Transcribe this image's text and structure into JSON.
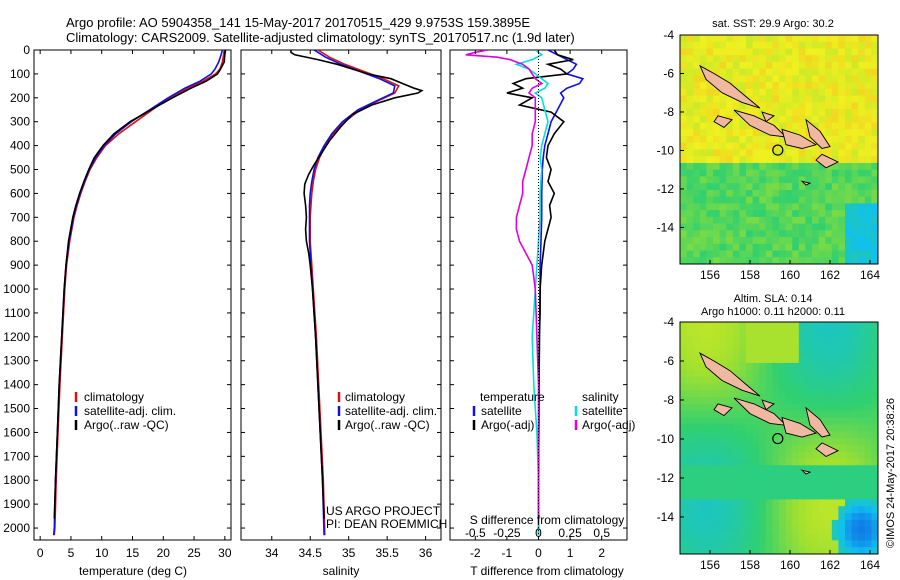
{
  "header": {
    "line1": "Argo profile: AO 5904358_141 15-May-2017 20170515_429 9.9753S 159.3895E",
    "line2": "Climatology: CARS2009. Satellite-adjusted climatology: synTS_20170517.nc (1.9d later)"
  },
  "project": {
    "line1": "US ARGO PROJECT",
    "line2": "PI: DEAN ROEMMICH"
  },
  "imos_stamp": "©IMOS 24-May-2017 20:38:26",
  "colors": {
    "climatology": "#e01010",
    "satellite": "#1010e0",
    "argo": "#000000",
    "satellite_salinity": "#00e0e0",
    "argo_salinity": "#e000e0",
    "land": "#f0b8a0"
  },
  "chart_data": [
    {
      "type": "line",
      "id": "temperature",
      "xlabel": "temperature (deg C)",
      "xlim": [
        -1,
        31
      ],
      "ylim": [
        2050,
        0
      ],
      "xticks": [
        "0",
        "5",
        "10",
        "15",
        "20",
        "25",
        "30"
      ],
      "yticks": [
        "0",
        "100",
        "200",
        "300",
        "400",
        "500",
        "600",
        "700",
        "800",
        "900",
        "1000",
        "1100",
        "1200",
        "1300",
        "1400",
        "1500",
        "1600",
        "1700",
        "1800",
        "1900",
        "2000"
      ],
      "legend": [
        "climatology",
        "satellite-adj. clim.",
        "Argo(..raw -QC)"
      ],
      "legend_position": "bottom-left",
      "series": [
        {
          "name": "climatology",
          "color": "#e01010",
          "depth": [
            0,
            20,
            50,
            80,
            100,
            130,
            160,
            200,
            250,
            300,
            350,
            400,
            450,
            500,
            550,
            600,
            650,
            700,
            800,
            900,
            1000,
            1200,
            1400,
            1600,
            1800,
            2000,
            2030
          ],
          "values": [
            29.9,
            29.8,
            29.6,
            29.2,
            28.5,
            26.5,
            24,
            21,
            18.2,
            15.5,
            12.8,
            10.6,
            9.2,
            8.1,
            7.3,
            6.6,
            6,
            5.5,
            4.8,
            4.3,
            4,
            3.6,
            3.2,
            2.9,
            2.6,
            2.4,
            2.3
          ]
        },
        {
          "name": "satellite-adj. clim.",
          "color": "#1010e0",
          "depth": [
            0,
            20,
            50,
            80,
            100,
            130,
            160,
            200,
            250,
            300,
            350,
            400,
            450,
            500,
            550,
            600,
            650,
            700,
            800,
            900,
            1000,
            1200,
            1400,
            1600,
            1800,
            2000,
            2030
          ],
          "values": [
            29.6,
            29.4,
            29,
            28.4,
            27.8,
            26,
            23.5,
            20.8,
            17.8,
            14.8,
            12.3,
            10.4,
            9,
            8,
            7.2,
            6.5,
            5.9,
            5.4,
            4.7,
            4.2,
            3.9,
            3.5,
            3.1,
            2.8,
            2.5,
            2.3,
            2.2
          ]
        },
        {
          "name": "Argo(..raw -QC)",
          "color": "#000000",
          "depth": [
            0,
            20,
            50,
            80,
            100,
            130,
            160,
            200,
            250,
            300,
            350,
            400,
            450,
            500,
            550,
            600,
            650,
            700,
            800,
            900,
            1000,
            1200,
            1400,
            1600,
            1800,
            1960
          ],
          "values": [
            30.1,
            30,
            29.9,
            29.3,
            28.8,
            27,
            24.5,
            21.5,
            18,
            14.6,
            12,
            10.2,
            8.8,
            7.9,
            7.1,
            6.4,
            5.8,
            5.3,
            4.6,
            4.2,
            3.9,
            3.5,
            3.1,
            2.8,
            2.5,
            2.3
          ]
        }
      ]
    },
    {
      "type": "line",
      "id": "salinity",
      "xlabel": "salinity",
      "xlim": [
        33.6,
        36.2
      ],
      "ylim": [
        2050,
        0
      ],
      "xticks": [
        "34",
        "34.5",
        "35",
        "35.5",
        "36"
      ],
      "legend": [
        "climatology",
        "satellite-adj. clim.",
        "Argo(..raw -QC)"
      ],
      "legend_position": "bottom-right",
      "series": [
        {
          "name": "climatology",
          "color": "#e01010",
          "depth": [
            0,
            30,
            60,
            90,
            120,
            150,
            180,
            210,
            250,
            300,
            350,
            400,
            450,
            500,
            550,
            600,
            650,
            700,
            800,
            900,
            1000,
            1200,
            1400,
            1600,
            1800,
            2030
          ],
          "values": [
            34.6,
            34.75,
            34.95,
            35.2,
            35.45,
            35.65,
            35.6,
            35.4,
            35.15,
            34.95,
            34.8,
            34.7,
            34.62,
            34.57,
            34.54,
            34.52,
            34.51,
            34.5,
            34.5,
            34.52,
            34.54,
            34.58,
            34.61,
            34.64,
            34.67,
            34.69
          ]
        },
        {
          "name": "satellite-adj. clim.",
          "color": "#1010e0",
          "depth": [
            0,
            30,
            60,
            90,
            120,
            150,
            180,
            210,
            250,
            300,
            350,
            400,
            450,
            500,
            550,
            600,
            650,
            700,
            800,
            900,
            1000,
            1200,
            1400,
            1600,
            1800,
            2030
          ],
          "values": [
            34.55,
            34.7,
            34.9,
            35.15,
            35.4,
            35.6,
            35.58,
            35.38,
            35.12,
            34.92,
            34.78,
            34.68,
            34.6,
            34.55,
            34.52,
            34.5,
            34.49,
            34.49,
            34.49,
            34.51,
            34.53,
            34.57,
            34.6,
            34.63,
            34.66,
            34.68
          ]
        },
        {
          "name": "Argo(..raw -QC)",
          "color": "#000000",
          "depth": [
            0,
            10,
            20,
            40,
            60,
            80,
            100,
            120,
            140,
            160,
            170,
            180,
            200,
            230,
            270,
            320,
            380,
            430,
            480,
            520,
            560,
            600,
            650,
            700,
            750,
            800,
            850,
            900,
            1000,
            1200,
            1400,
            1600,
            1800,
            1960
          ],
          "values": [
            34.25,
            34.25,
            34.3,
            34.6,
            34.85,
            35.05,
            35.25,
            35.55,
            35.7,
            35.85,
            35.95,
            35.9,
            35.6,
            35.3,
            35.05,
            34.9,
            34.75,
            34.65,
            34.55,
            34.48,
            34.43,
            34.42,
            34.44,
            34.45,
            34.44,
            34.45,
            34.48,
            34.5,
            34.53,
            34.57,
            34.6,
            34.63,
            34.66,
            34.68
          ]
        }
      ]
    },
    {
      "type": "line",
      "id": "difference",
      "xlabel": "T difference from climatology",
      "xlabel_top": "S difference from climatology",
      "xlim": [
        -2.8,
        2.8
      ],
      "ylim": [
        2050,
        0
      ],
      "xticks": [
        "-2",
        "-1",
        "0",
        "1",
        "2"
      ],
      "xticks_salinity": [
        "-0.5",
        "-0.25",
        "0",
        "0.25",
        "0.5"
      ],
      "legend_headers": [
        "temperature",
        "salinity"
      ],
      "legend": [
        "satellite",
        "Argo(-adj)",
        "satellite",
        "Argo(-adj)"
      ],
      "series": [
        {
          "name": "satellite",
          "group": "temperature",
          "color": "#1010e0",
          "depth": [
            0,
            20,
            40,
            60,
            80,
            100,
            120,
            140,
            160,
            180,
            200,
            250,
            300,
            350,
            400,
            450,
            500,
            600,
            700,
            800,
            900,
            1000,
            1200,
            1400,
            1600,
            1800,
            2030
          ],
          "values": [
            0.3,
            0.6,
            0.9,
            1.2,
            1.1,
            0.9,
            1.4,
            1.3,
            0.9,
            0.7,
            0.8,
            0.6,
            0.4,
            0.3,
            0.2,
            0.15,
            0.12,
            0.1,
            0.1,
            0.08,
            0.05,
            0.05,
            0.03,
            0.02,
            0.01,
            0,
            0
          ]
        },
        {
          "name": "Argo(-adj)",
          "group": "temperature",
          "color": "#000000",
          "depth": [
            0,
            20,
            40,
            60,
            80,
            100,
            120,
            140,
            160,
            180,
            200,
            230,
            260,
            300,
            350,
            400,
            450,
            500,
            550,
            600,
            650,
            700,
            800,
            900,
            1000,
            1100,
            1200,
            1400,
            1600,
            1800,
            1960
          ],
          "values": [
            0.5,
            0.6,
            1.1,
            0.3,
            0.7,
            0.9,
            -0.4,
            -0.8,
            -0.5,
            -1.0,
            -0.2,
            -0.6,
            0.4,
            0.8,
            0.5,
            0.3,
            0.25,
            0.4,
            0.3,
            0.5,
            0.35,
            0.4,
            0.2,
            0.1,
            0.05,
            0.05,
            0.03,
            0.02,
            0.01,
            0.0,
            0.0
          ]
        },
        {
          "name": "satellite",
          "group": "salinity",
          "color": "#00e0e0",
          "depth": [
            0,
            20,
            40,
            60,
            80,
            100,
            120,
            140,
            160,
            180,
            200,
            250,
            300,
            350,
            400,
            450,
            500,
            600,
            700,
            800,
            900,
            1000,
            1100,
            1200,
            1400,
            1500,
            1600,
            1800,
            2030
          ],
          "values": [
            -0.1,
            0.1,
            -0.2,
            -0.7,
            -0.3,
            -0.1,
            0.1,
            0.3,
            0.2,
            -0.1,
            0.1,
            0.2,
            0.3,
            0.2,
            0.1,
            0.05,
            0.1,
            0.05,
            0.05,
            0.0,
            -0.05,
            -0.1,
            -0.15,
            -0.2,
            -0.15,
            -0.1,
            -0.05,
            0,
            0
          ]
        },
        {
          "name": "Argo(-adj)",
          "group": "salinity",
          "color": "#e000e0",
          "depth": [
            0,
            10,
            20,
            30,
            40,
            50,
            60,
            80,
            100,
            120,
            140,
            160,
            180,
            200,
            250,
            300,
            350,
            400,
            450,
            500,
            550,
            600,
            650,
            700,
            750,
            800,
            850,
            900,
            1000,
            1200,
            1400,
            1600,
            1800,
            1960
          ],
          "values": [
            -1.6,
            -2.0,
            -2.3,
            -1.3,
            -0.9,
            -0.7,
            -0.5,
            -0.3,
            -0.2,
            -0.1,
            0.1,
            -0.2,
            -0.3,
            -0.1,
            -0.1,
            -0.1,
            -0.2,
            -0.2,
            -0.3,
            -0.4,
            -0.5,
            -0.5,
            -0.6,
            -0.7,
            -0.7,
            -0.6,
            -0.4,
            -0.2,
            -0.1,
            -0.05,
            0,
            0,
            0,
            0
          ]
        }
      ]
    },
    {
      "type": "heatmap",
      "id": "sst-map",
      "title": "sat. SST: 29.9 Argo: 30.2",
      "xlim": [
        154.5,
        164.4
      ],
      "ylim": [
        -15.9,
        -4
      ],
      "xticks": [
        "156",
        "158",
        "160",
        "162",
        "164"
      ],
      "yticks": [
        "-4",
        "-6",
        "-8",
        "-10",
        "-12",
        "-14"
      ],
      "argo_position": [
        159.39,
        -9.98
      ],
      "pattern": "warm-north"
    },
    {
      "type": "heatmap",
      "id": "sla-map",
      "title_lines": [
        "Altim. SLA: 0.14",
        "Argo h1000: 0.11 h2000: 0.11"
      ],
      "xlim": [
        154.5,
        164.4
      ],
      "ylim": [
        -15.9,
        -4
      ],
      "xticks": [
        "156",
        "158",
        "160",
        "162",
        "164"
      ],
      "yticks": [
        "-4",
        "-6",
        "-8",
        "-10",
        "-12",
        "-14"
      ],
      "argo_position": [
        159.39,
        -9.98
      ],
      "pattern": "smooth"
    }
  ]
}
